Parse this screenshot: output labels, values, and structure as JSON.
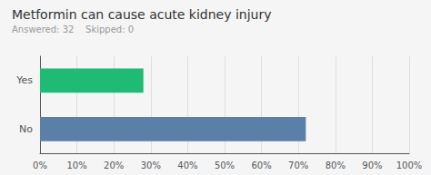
{
  "chart_data": {
    "type": "bar",
    "orientation": "horizontal",
    "title": "Metformin can cause acute kidney injury",
    "subtitle": "Answered: 32    Skipped: 0",
    "categories": [
      "Yes",
      "No"
    ],
    "values": [
      28,
      72
    ],
    "colors": [
      "#1fba74",
      "#5b7fa6"
    ],
    "xlim": [
      0,
      100
    ],
    "xticks": [
      {
        "value": 0,
        "label": "0%"
      },
      {
        "value": 10,
        "label": "10%"
      },
      {
        "value": 20,
        "label": "20%"
      },
      {
        "value": 30,
        "label": "30%"
      },
      {
        "value": 40,
        "label": "40%"
      },
      {
        "value": 50,
        "label": "50%"
      },
      {
        "value": 60,
        "label": "60%"
      },
      {
        "value": 70,
        "label": "70%"
      },
      {
        "value": 80,
        "label": "80%"
      },
      {
        "value": 90,
        "label": "90%"
      },
      {
        "value": 100,
        "label": "100%"
      }
    ],
    "grid": true
  }
}
